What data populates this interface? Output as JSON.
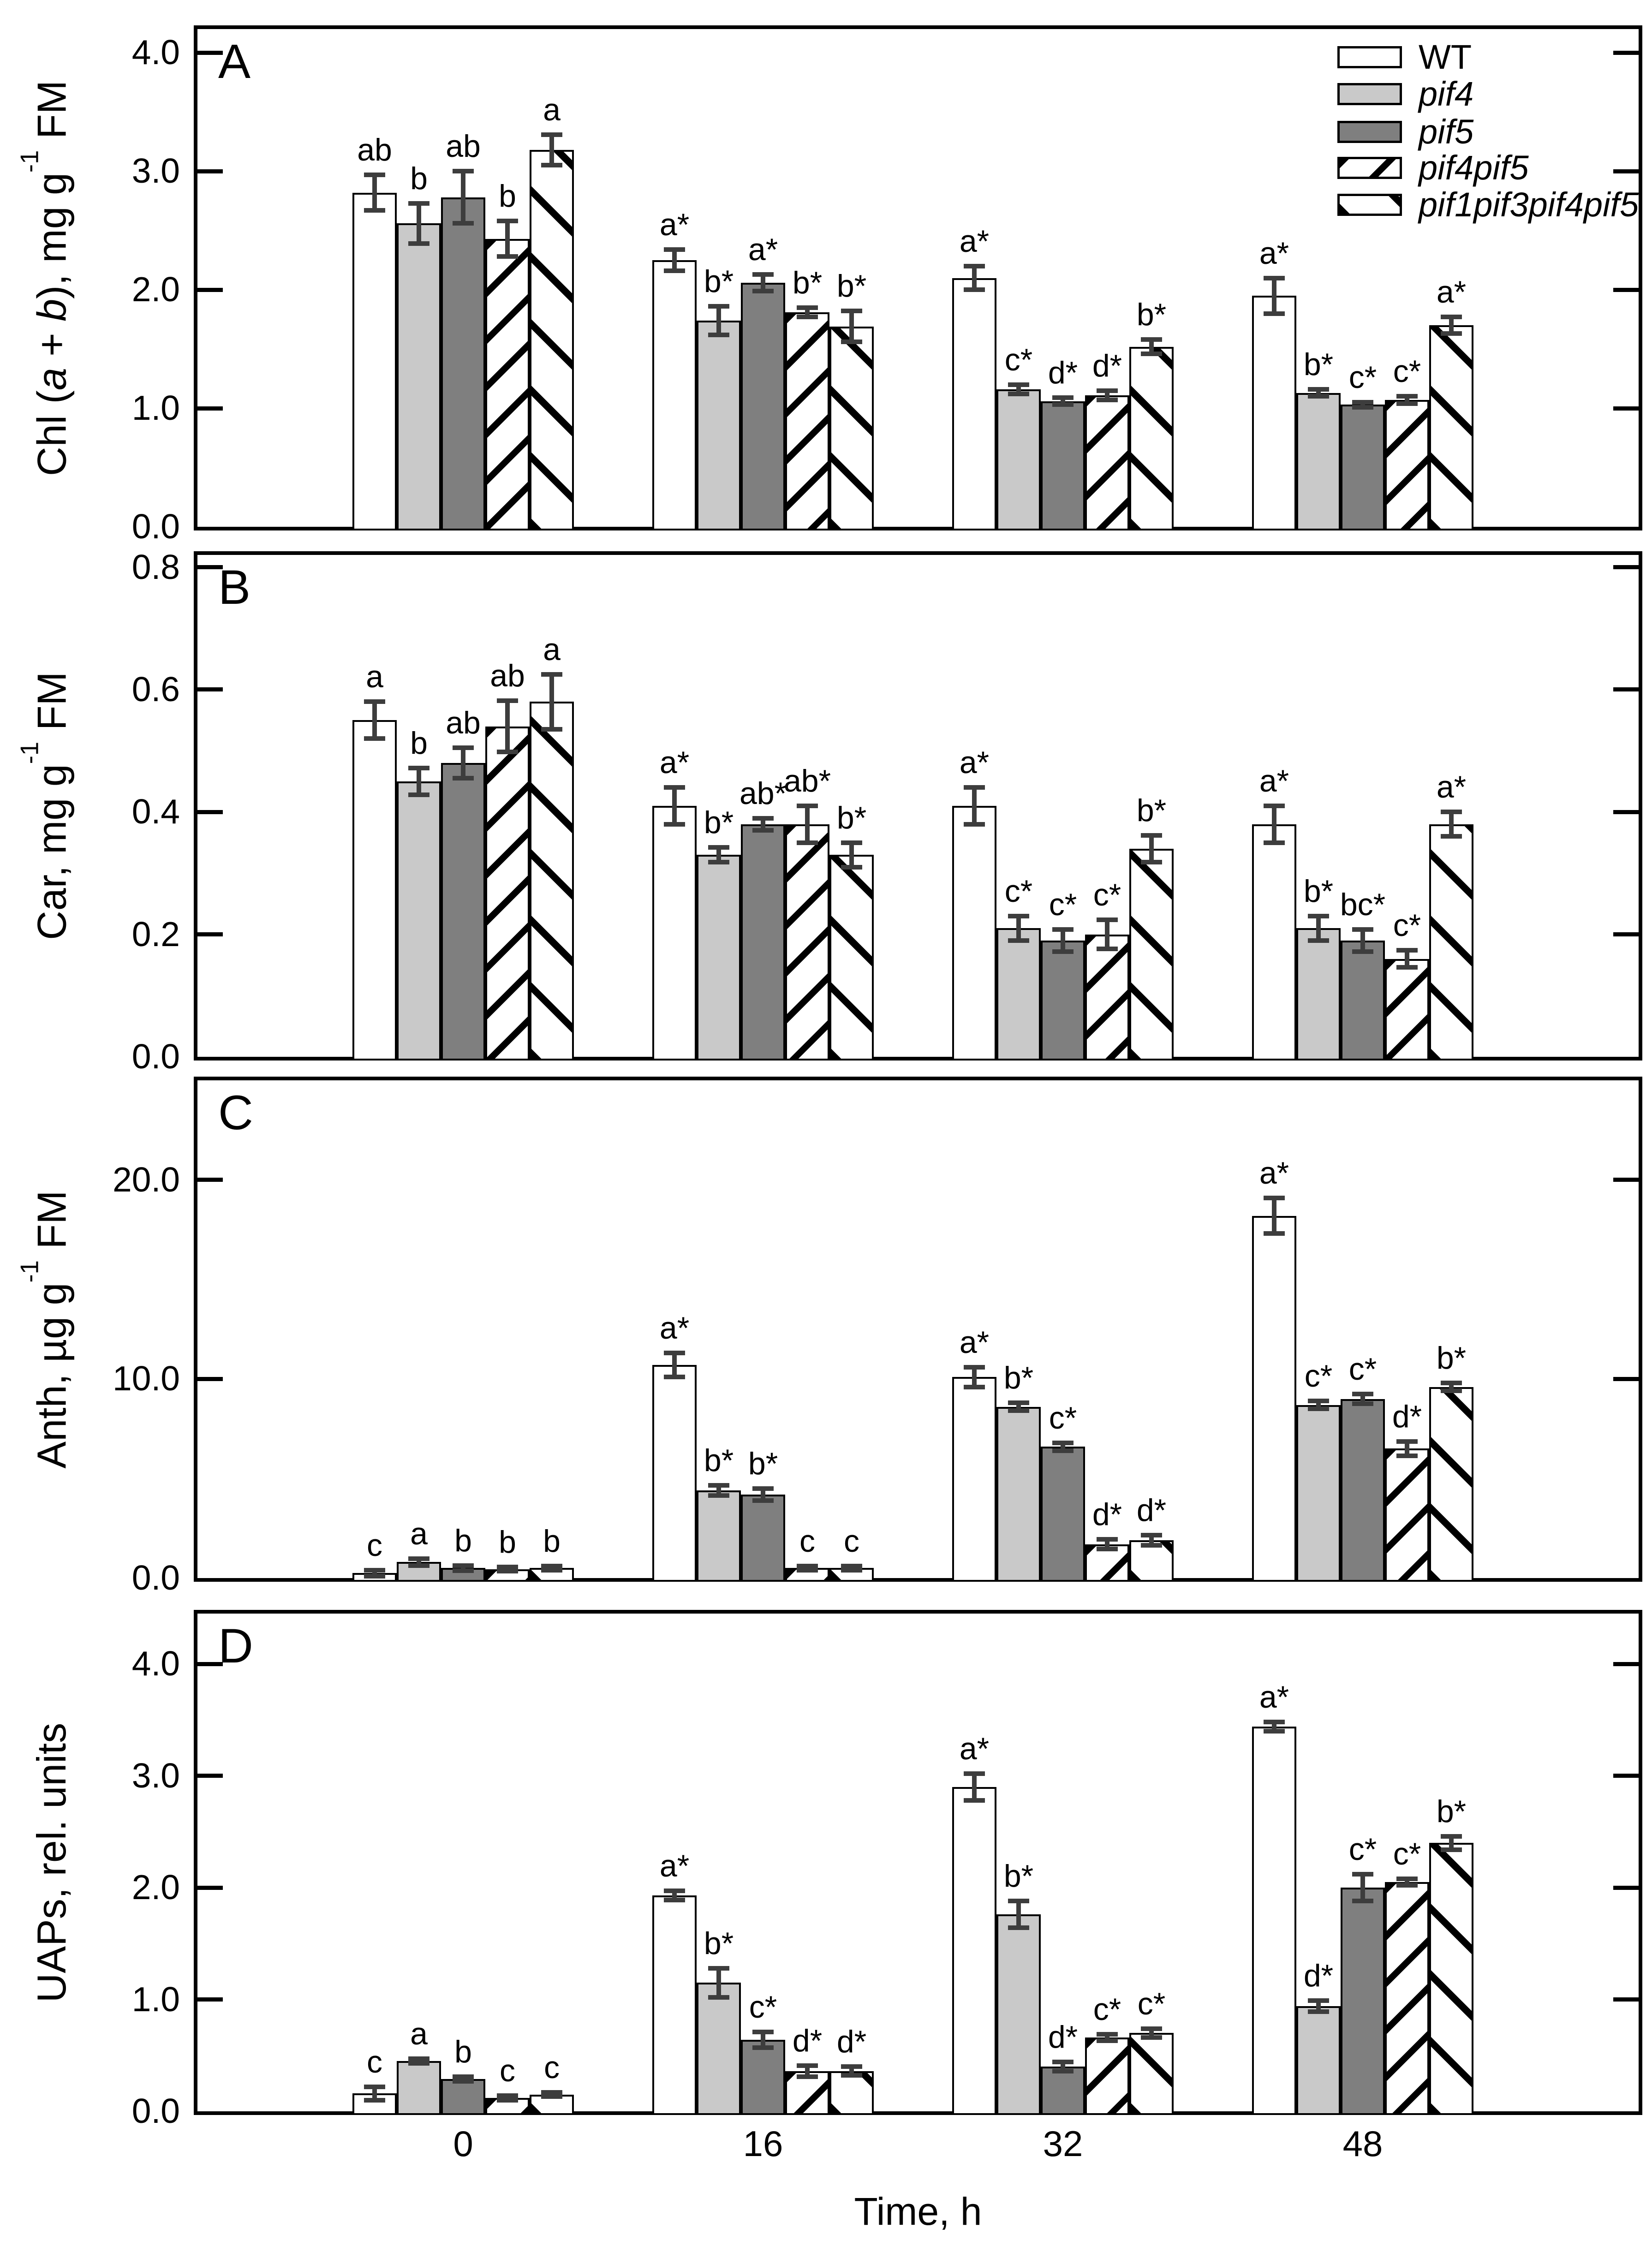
{
  "figure": {
    "xlabel": "Time, h",
    "categories": [
      "0",
      "16",
      "32",
      "48"
    ],
    "panel_letters": [
      "A",
      "B",
      "C",
      "D"
    ],
    "colors": {
      "bar_white": "#ffffff",
      "bar_lightgray": "#c9c9c9",
      "bar_darkgray": "#7f7f7f",
      "hatch": "#000000",
      "error_bar": "#3d3d3d",
      "axis": "#000000",
      "background": "#ffffff"
    },
    "legend": [
      {
        "label": "WT",
        "italic": false,
        "style": "white"
      },
      {
        "label": "pif4",
        "italic": true,
        "style": "lightgray"
      },
      {
        "label": "pif5",
        "italic": true,
        "style": "darkgray"
      },
      {
        "label": "pif4pif5",
        "italic": true,
        "style": "hatchf"
      },
      {
        "label": "pif1pif3pif4pif5",
        "italic": true,
        "style": "hatchb"
      }
    ]
  },
  "chart_data": [
    {
      "type": "bar",
      "panel": "A",
      "ylabel_parts": [
        {
          "t": "Chl ("
        },
        {
          "t": "a",
          "i": 1
        },
        {
          "t": " + "
        },
        {
          "t": "b",
          "i": 1
        },
        {
          "t": "), mg g"
        },
        {
          "t": "-1",
          "sup": 1
        },
        {
          "t": " FM"
        }
      ],
      "ylim": [
        0,
        4.2
      ],
      "yticks": [
        0,
        1,
        2,
        3,
        4
      ],
      "ytick_labels": [
        "0.0",
        "1.0",
        "2.0",
        "3.0",
        "4.0"
      ],
      "categories": [
        "0",
        "16",
        "32",
        "48"
      ],
      "series": [
        {
          "name": "WT",
          "style": "white",
          "values": [
            2.82,
            2.25,
            2.1,
            1.95
          ],
          "errors": [
            0.15,
            0.09,
            0.1,
            0.15
          ],
          "letters": [
            "ab",
            "a*",
            "a*",
            "a*"
          ]
        },
        {
          "name": "pif4",
          "style": "lightgray",
          "values": [
            2.56,
            1.74,
            1.16,
            1.13
          ],
          "errors": [
            0.17,
            0.12,
            0.04,
            0.03
          ],
          "letters": [
            "b",
            "b*",
            "c*",
            "b*"
          ]
        },
        {
          "name": "pif5",
          "style": "darkgray",
          "values": [
            2.78,
            2.06,
            1.06,
            1.03
          ],
          "errors": [
            0.22,
            0.07,
            0.03,
            0.02
          ],
          "letters": [
            "ab",
            "a*",
            "d*",
            "c*"
          ]
        },
        {
          "name": "pif4pif5",
          "style": "hatchf",
          "values": [
            2.43,
            1.81,
            1.11,
            1.07
          ],
          "errors": [
            0.15,
            0.04,
            0.04,
            0.03
          ],
          "letters": [
            "b",
            "b*",
            "d*",
            "c*"
          ]
        },
        {
          "name": "pif1pif3pif4pif5",
          "style": "hatchb",
          "values": [
            3.18,
            1.69,
            1.52,
            1.7
          ],
          "errors": [
            0.13,
            0.13,
            0.06,
            0.07
          ],
          "letters": [
            "a",
            "b*",
            "b*",
            "a*"
          ]
        }
      ]
    },
    {
      "type": "bar",
      "panel": "B",
      "ylabel_parts": [
        {
          "t": "Car, mg g"
        },
        {
          "t": "-1",
          "sup": 1
        },
        {
          "t": " FM"
        }
      ],
      "ylim": [
        0,
        0.82
      ],
      "yticks": [
        0,
        0.2,
        0.4,
        0.6,
        0.8
      ],
      "ytick_labels": [
        "0.0",
        "0.2",
        "0.4",
        "0.6",
        "0.8"
      ],
      "categories": [
        "0",
        "16",
        "32",
        "48"
      ],
      "series": [
        {
          "name": "WT",
          "style": "white",
          "values": [
            0.55,
            0.41,
            0.41,
            0.38
          ],
          "errors": [
            0.03,
            0.03,
            0.03,
            0.03
          ],
          "letters": [
            "a",
            "a*",
            "a*",
            "a*"
          ]
        },
        {
          "name": "pif4",
          "style": "lightgray",
          "values": [
            0.45,
            0.33,
            0.21,
            0.21
          ],
          "errors": [
            0.022,
            0.012,
            0.02,
            0.02
          ],
          "letters": [
            "b",
            "b*",
            "c*",
            "b*"
          ]
        },
        {
          "name": "pif5",
          "style": "darkgray",
          "values": [
            0.48,
            0.38,
            0.19,
            0.19
          ],
          "errors": [
            0.025,
            0.01,
            0.018,
            0.018
          ],
          "letters": [
            "ab",
            "ab*",
            "c*",
            "bc*"
          ]
        },
        {
          "name": "pif4pif5",
          "style": "hatchf",
          "values": [
            0.54,
            0.38,
            0.2,
            0.16
          ],
          "errors": [
            0.042,
            0.03,
            0.024,
            0.014
          ],
          "letters": [
            "ab",
            "ab*",
            "c*",
            "c*"
          ]
        },
        {
          "name": "pif1pif3pif4pif5",
          "style": "hatchb",
          "values": [
            0.58,
            0.33,
            0.34,
            0.38
          ],
          "errors": [
            0.045,
            0.02,
            0.022,
            0.02
          ],
          "letters": [
            "a",
            "b*",
            "b*",
            "a*"
          ]
        }
      ]
    },
    {
      "type": "bar",
      "panel": "C",
      "ylabel_parts": [
        {
          "t": "Anth, µg g"
        },
        {
          "t": "-1",
          "sup": 1
        },
        {
          "t": " FM"
        }
      ],
      "ylim": [
        0,
        25
      ],
      "yticks": [
        0,
        10,
        20
      ],
      "ytick_labels": [
        "0.0",
        "10.0",
        "20.0"
      ],
      "categories": [
        "0",
        "16",
        "32",
        "48"
      ],
      "series": [
        {
          "name": "WT",
          "style": "white",
          "values": [
            0.25,
            10.7,
            10.1,
            18.2
          ],
          "errors": [
            0.15,
            0.6,
            0.5,
            0.9
          ],
          "letters": [
            "c",
            "a*",
            "a*",
            "a*"
          ]
        },
        {
          "name": "pif4",
          "style": "lightgray",
          "values": [
            0.8,
            4.4,
            8.6,
            8.7
          ],
          "errors": [
            0.18,
            0.25,
            0.2,
            0.2
          ],
          "letters": [
            "a",
            "b*",
            "b*",
            "c*"
          ]
        },
        {
          "name": "pif5",
          "style": "darkgray",
          "values": [
            0.5,
            4.2,
            6.6,
            9.0
          ],
          "errors": [
            0.12,
            0.3,
            0.2,
            0.25
          ],
          "letters": [
            "b",
            "b*",
            "c*",
            "c*"
          ]
        },
        {
          "name": "pif4pif5",
          "style": "hatchf",
          "values": [
            0.45,
            0.5,
            1.7,
            6.5
          ],
          "errors": [
            0.1,
            0.1,
            0.25,
            0.35
          ],
          "letters": [
            "b",
            "c",
            "d*",
            "d*"
          ]
        },
        {
          "name": "pif1pif3pif4pif5",
          "style": "hatchb",
          "values": [
            0.5,
            0.5,
            1.9,
            9.6
          ],
          "errors": [
            0.1,
            0.1,
            0.25,
            0.2
          ],
          "letters": [
            "b",
            "c",
            "d*",
            "b*"
          ]
        }
      ]
    },
    {
      "type": "bar",
      "panel": "D",
      "ylabel_parts": [
        {
          "t": "UAPs, rel. units"
        }
      ],
      "ylim": [
        0,
        4.45
      ],
      "yticks": [
        0,
        1,
        2,
        3,
        4
      ],
      "ytick_labels": [
        "0.0",
        "1.0",
        "2.0",
        "3.0",
        "4.0"
      ],
      "categories": [
        "0",
        "16",
        "32",
        "48"
      ],
      "series": [
        {
          "name": "WT",
          "style": "white",
          "values": [
            0.16,
            1.93,
            2.9,
            3.44
          ],
          "errors": [
            0.06,
            0.04,
            0.12,
            0.04
          ],
          "letters": [
            "c",
            "a*",
            "a*",
            "a*"
          ]
        },
        {
          "name": "pif4",
          "style": "lightgray",
          "values": [
            0.45,
            1.15,
            1.76,
            0.94
          ],
          "errors": [
            0.02,
            0.13,
            0.12,
            0.05
          ],
          "letters": [
            "a",
            "b*",
            "b*",
            "d*"
          ]
        },
        {
          "name": "pif5",
          "style": "darkgray",
          "values": [
            0.29,
            0.64,
            0.4,
            2.0
          ],
          "errors": [
            0.02,
            0.07,
            0.04,
            0.12
          ],
          "letters": [
            "b",
            "c*",
            "d*",
            "c*"
          ]
        },
        {
          "name": "pif4pif5",
          "style": "hatchf",
          "values": [
            0.12,
            0.36,
            0.66,
            2.05
          ],
          "errors": [
            0.02,
            0.05,
            0.03,
            0.03
          ],
          "letters": [
            "c",
            "d*",
            "c*",
            "c*"
          ]
        },
        {
          "name": "pif1pif3pif4pif5",
          "style": "hatchb",
          "values": [
            0.15,
            0.36,
            0.7,
            2.4
          ],
          "errors": [
            0.02,
            0.04,
            0.04,
            0.06
          ],
          "letters": [
            "c",
            "d*",
            "c*",
            "b*"
          ]
        }
      ]
    }
  ]
}
